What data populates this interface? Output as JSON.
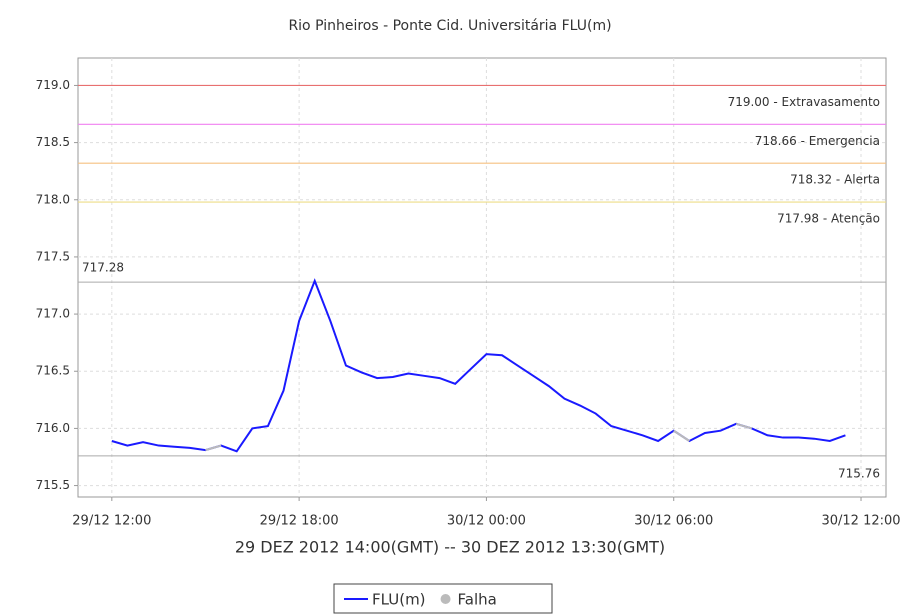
{
  "chart_data": {
    "type": "line",
    "title": "Rio Pinheiros - Ponte Cid. Universitária FLU(m)",
    "xlabel": "29 DEZ 2012 14:00(GMT) -- 30 DEZ 2012 13:30(GMT)",
    "x": [
      "2012-12-29T12:00",
      "2012-12-29T12:30",
      "2012-12-29T13:00",
      "2012-12-29T13:30",
      "2012-12-29T14:00",
      "2012-12-29T14:30",
      "2012-12-29T15:00",
      "2012-12-29T15:30",
      "2012-12-29T16:00",
      "2012-12-29T16:30",
      "2012-12-29T17:00",
      "2012-12-29T17:30",
      "2012-12-29T18:00",
      "2012-12-29T18:30",
      "2012-12-29T19:00",
      "2012-12-29T19:30",
      "2012-12-29T20:00",
      "2012-12-29T20:30",
      "2012-12-29T21:00",
      "2012-12-29T21:30",
      "2012-12-29T22:00",
      "2012-12-29T22:30",
      "2012-12-29T23:00",
      "2012-12-29T23:30",
      "2012-12-30T00:00",
      "2012-12-30T00:30",
      "2012-12-30T01:00",
      "2012-12-30T01:30",
      "2012-12-30T02:00",
      "2012-12-30T02:30",
      "2012-12-30T03:00",
      "2012-12-30T03:30",
      "2012-12-30T04:00",
      "2012-12-30T04:30",
      "2012-12-30T05:00",
      "2012-12-30T05:30",
      "2012-12-30T06:00",
      "2012-12-30T06:30",
      "2012-12-30T07:00",
      "2012-12-30T07:30",
      "2012-12-30T08:00",
      "2012-12-30T08:30",
      "2012-12-30T09:00",
      "2012-12-30T09:30",
      "2012-12-30T10:00",
      "2012-12-30T10:30",
      "2012-12-30T11:00",
      "2012-12-30T11:30"
    ],
    "series": [
      {
        "name": "FLU(m)",
        "color": "#1a1aff",
        "values": [
          715.89,
          715.85,
          715.88,
          715.85,
          715.84,
          715.83,
          715.81,
          715.85,
          715.8,
          716.0,
          716.02,
          716.33,
          716.94,
          717.29,
          716.94,
          716.55,
          716.49,
          716.44,
          716.45,
          716.48,
          716.46,
          716.44,
          716.39,
          716.52,
          716.65,
          716.64,
          716.55,
          716.46,
          716.37,
          716.26,
          716.2,
          716.13,
          716.02,
          715.98,
          715.94,
          715.89,
          715.98,
          715.89,
          715.96,
          715.98,
          716.04,
          716.0,
          715.94,
          715.92,
          715.92,
          715.91,
          715.89,
          715.94
        ]
      },
      {
        "name": "Falha",
        "color": "#bbbbbb",
        "values": [
          null,
          null,
          null,
          null,
          null,
          null,
          715.81,
          715.85,
          null,
          null,
          null,
          null,
          null,
          null,
          null,
          null,
          null,
          null,
          null,
          null,
          null,
          null,
          null,
          null,
          null,
          null,
          null,
          null,
          null,
          null,
          null,
          null,
          null,
          null,
          null,
          null,
          715.98,
          715.89,
          null,
          null,
          716.04,
          716.0,
          null,
          null,
          null,
          null,
          null,
          null
        ]
      }
    ],
    "thresholds": [
      {
        "value": 719,
        "label": "719.00 - Extravasamento",
        "color": "#e87070"
      },
      {
        "value": 718.66,
        "label": "718.66 - Emergencia",
        "color": "#f080f0"
      },
      {
        "value": 718.32,
        "label": "718.32 - Alerta",
        "color": "#f5c080"
      },
      {
        "value": 717.98,
        "label": "717.98 - Atenção",
        "color": "#eedd88"
      }
    ],
    "max": {
      "value": 717.28,
      "label": "717.28"
    },
    "min": {
      "value": 715.76,
      "label": "715.76"
    },
    "xlim": [
      "2012-12-29T10:55",
      "2012-12-30T12:48"
    ],
    "xticks": [
      {
        "value": "2012-12-29T12:00",
        "label": "29/12 12:00"
      },
      {
        "value": "2012-12-29T18:00",
        "label": "29/12 18:00"
      },
      {
        "value": "2012-12-30T00:00",
        "label": "30/12 00:00"
      },
      {
        "value": "2012-12-30T06:00",
        "label": "30/12 06:00"
      },
      {
        "value": "2012-12-30T12:00",
        "label": "30/12 12:00"
      }
    ],
    "ylim": [
      715.4,
      719.24
    ],
    "yticks": [
      {
        "value": 715.5,
        "label": "715.5"
      },
      {
        "value": 716,
        "label": "716.0"
      },
      {
        "value": 716.5,
        "label": "716.5"
      },
      {
        "value": 717,
        "label": "717.0"
      },
      {
        "value": 717.5,
        "label": "717.5"
      },
      {
        "value": 718,
        "label": "718.0"
      },
      {
        "value": 718.5,
        "label": "718.5"
      },
      {
        "value": 719,
        "label": "719.0"
      }
    ],
    "grid": true
  }
}
